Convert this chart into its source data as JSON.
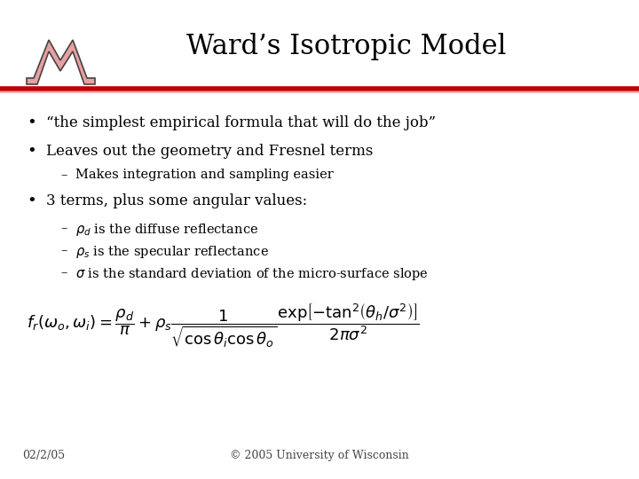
{
  "title": "Ward’s Isotropic Model",
  "title_fontsize": 22,
  "title_font": "serif",
  "bg_color": "#ffffff",
  "header_line_color1": "#c00000",
  "header_line_color2": "#e8b0b0",
  "bullet1": "“the simplest empirical formula that will do the job”",
  "bullet2": "Leaves out the geometry and Fresnel terms",
  "sub_bullet2": "Makes integration and sampling easier",
  "bullet3": "3 terms, plus some angular values:",
  "sub_bullet3a": "$\\rho_d$ is the diffuse reflectance",
  "sub_bullet3b": "$\\rho_s$ is the specular reflectance",
  "sub_bullet3c": "$\\sigma$ is the standard deviation of the micro-surface slope",
  "footer_left": "02/2/05",
  "footer_right": "© 2005 University of Wisconsin",
  "text_color": "#000000",
  "footer_color": "#444444",
  "body_font": "serif",
  "body_fontsize": 12,
  "sub_fontsize": 10.5,
  "formula_fontsize": 13,
  "logo_color": "#e8a0a0",
  "logo_outline": "#444444"
}
